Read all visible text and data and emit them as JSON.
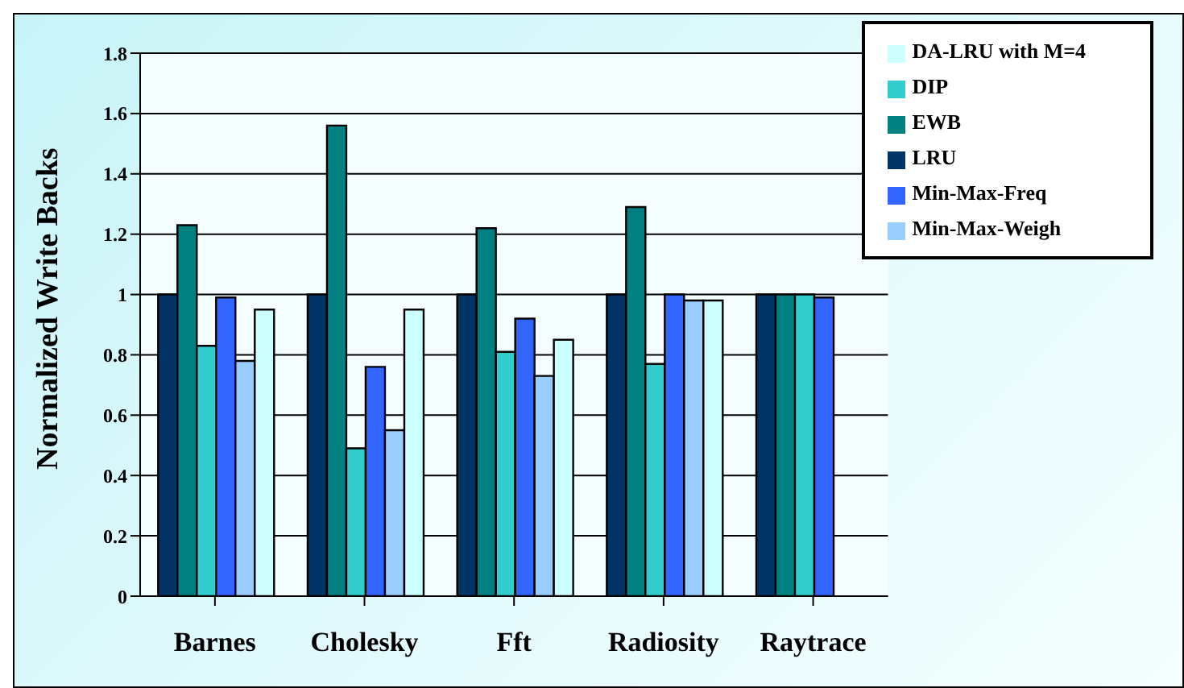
{
  "chart_data": {
    "type": "bar",
    "ylabel": "Normalized Write Backs",
    "categories": [
      "Barnes",
      "Cholesky",
      "Fft",
      "Radiosity",
      "Raytrace"
    ],
    "series": [
      {
        "name": "LRU",
        "color": "#003366",
        "values": [
          1.0,
          1.0,
          1.0,
          1.0,
          1.0
        ]
      },
      {
        "name": "EWB",
        "color": "#008080",
        "values": [
          1.23,
          1.56,
          1.22,
          1.29,
          1.0
        ]
      },
      {
        "name": "DIP",
        "color": "#33cccc",
        "values": [
          0.83,
          0.49,
          0.81,
          0.77,
          1.0
        ]
      },
      {
        "name": "Min-Max-Freq",
        "color": "#3366ff",
        "values": [
          0.99,
          0.76,
          0.92,
          1.0,
          0.99
        ]
      },
      {
        "name": "Min-Max-Weigh",
        "color": "#99ccff",
        "values": [
          0.78,
          0.55,
          0.73,
          0.98,
          null
        ]
      },
      {
        "name": "DA-LRU  with M=4",
        "color": "#ccffff",
        "values": [
          0.95,
          0.95,
          0.85,
          0.98,
          null
        ]
      }
    ],
    "ylim": [
      0,
      1.8
    ],
    "yticks": [
      0,
      0.2,
      0.4,
      0.6,
      0.8,
      1,
      1.2,
      1.4,
      1.6,
      1.8
    ],
    "grid": "y",
    "legend": "top right"
  }
}
